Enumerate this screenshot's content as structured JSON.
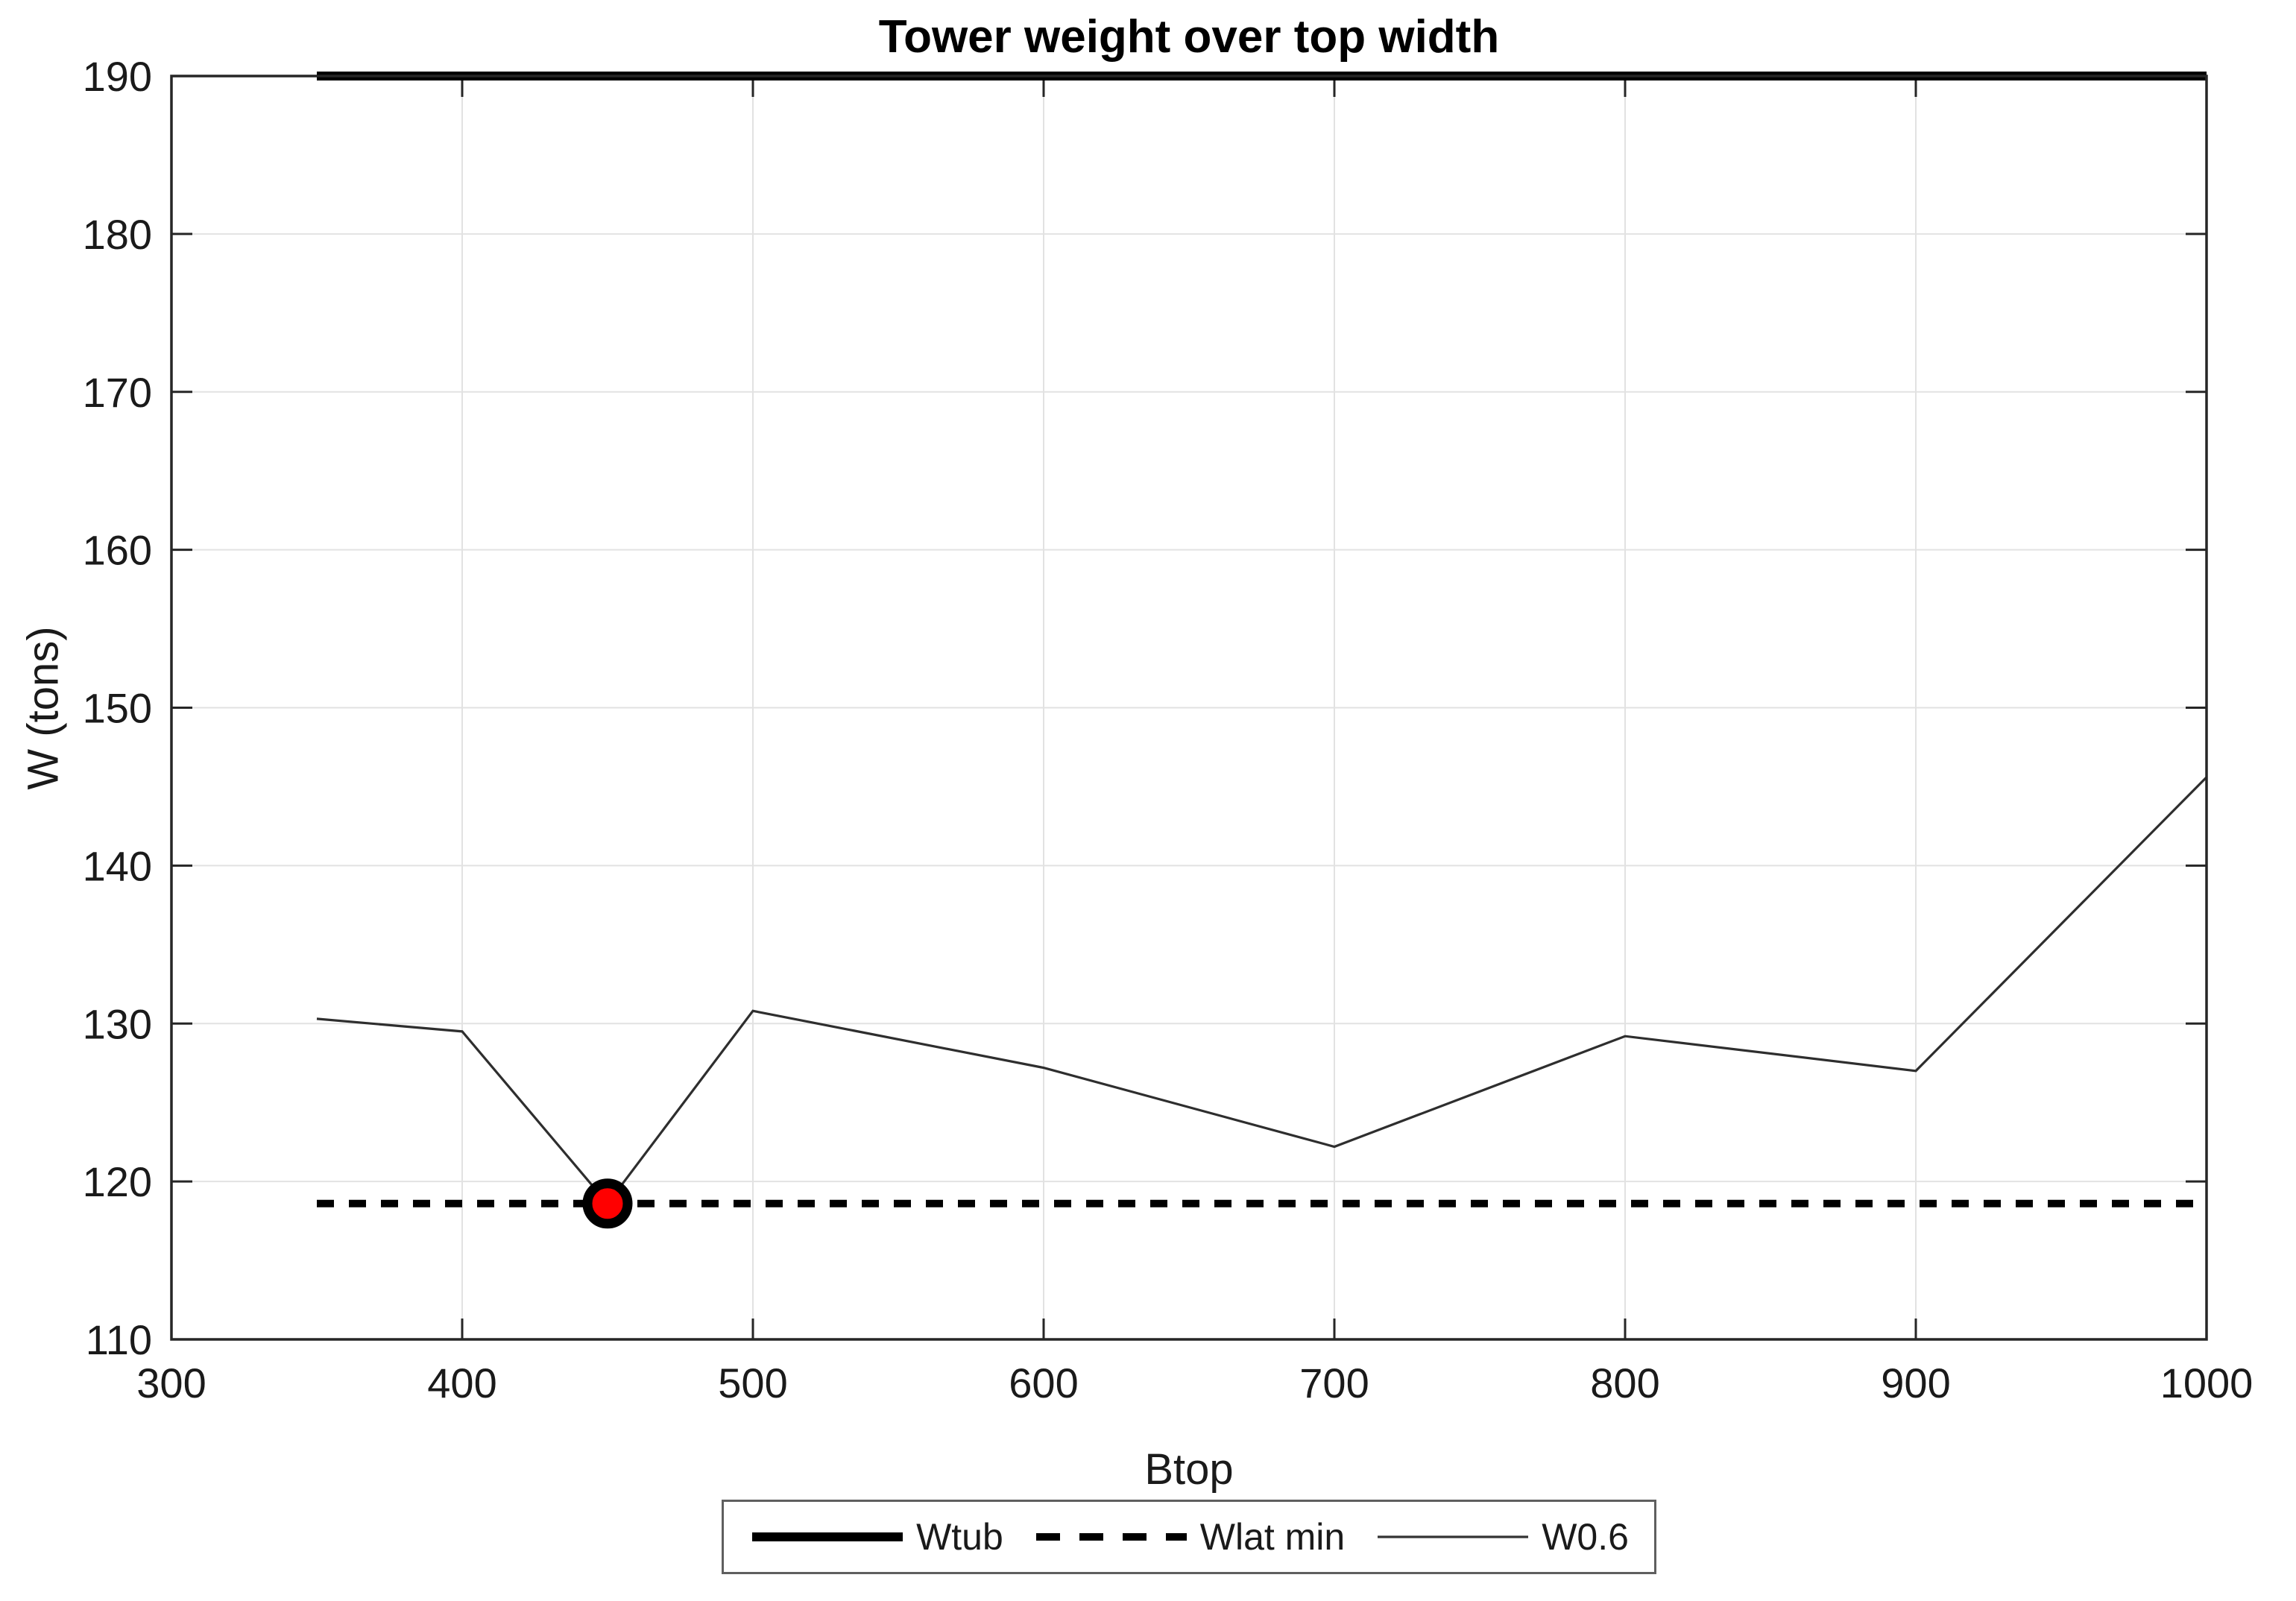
{
  "title": "Tower weight over top width",
  "chart_data": {
    "type": "line",
    "title": "Tower weight over top width",
    "xlabel": "Btop",
    "ylabel": "W (tons)",
    "xlim": [
      300,
      1000
    ],
    "ylim": [
      110,
      190
    ],
    "xticks": [
      300,
      400,
      500,
      600,
      700,
      800,
      900,
      1000
    ],
    "yticks": [
      110,
      120,
      130,
      140,
      150,
      160,
      170,
      180,
      190
    ],
    "grid": true,
    "legend_position": "bottom-outside",
    "series": [
      {
        "name": "Wtub",
        "style": "solid-thick",
        "color": "#000000",
        "x": [
          350,
          1000
        ],
        "y": [
          190,
          190
        ]
      },
      {
        "name": "Wlat min",
        "style": "dashed",
        "color": "#000000",
        "x": [
          350,
          1000
        ],
        "y": [
          118.6,
          118.6
        ]
      },
      {
        "name": "W0.6",
        "style": "solid-thin",
        "color": "#2e2e2e",
        "x": [
          350,
          400,
          450,
          500,
          600,
          700,
          800,
          900,
          1000
        ],
        "y": [
          130.3,
          129.5,
          118.6,
          130.8,
          127.2,
          122.2,
          129.2,
          127.0,
          145.6
        ]
      }
    ],
    "marker": {
      "x": 450,
      "y": 118.6,
      "fill": "#ff0000",
      "edge": "#000000",
      "shape": "circle"
    },
    "colors": {
      "axis": "#262626",
      "grid": "#e2e2e2",
      "background": "#ffffff"
    }
  }
}
